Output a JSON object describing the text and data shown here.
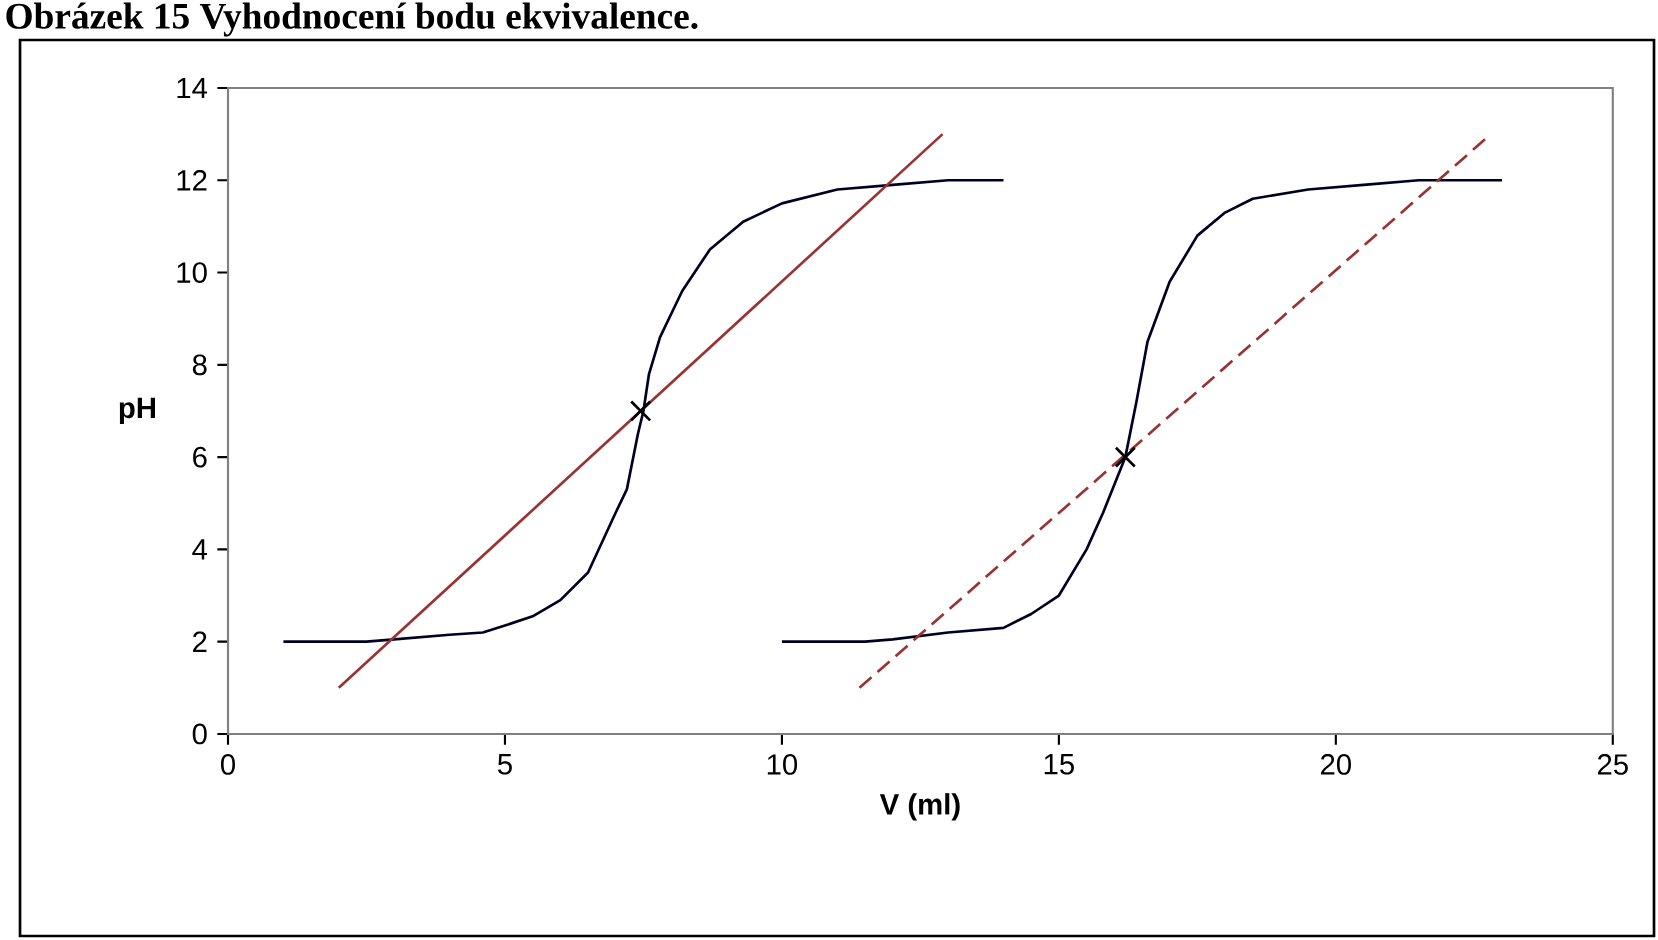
{
  "chart_data": {
    "type": "line",
    "title": "Obrázek 15 Vyhodnocení bodu ekvivalence.",
    "xlabel": "V (ml)",
    "ylabel": "pH",
    "xlim": [
      0,
      25
    ],
    "ylim": [
      0,
      14
    ],
    "xticks": [
      0,
      5,
      10,
      15,
      20,
      25
    ],
    "yticks": [
      0,
      2,
      4,
      6,
      8,
      10,
      12,
      14
    ],
    "grid": false,
    "series": [
      {
        "color": "#000022",
        "line_style": "solid",
        "x": [
          1,
          2.5,
          3,
          4,
          4.6,
          5,
          5.5,
          6,
          6.5,
          7,
          7.2,
          7.4,
          7.5,
          7.6,
          7.8,
          8.2,
          8.7,
          9.3,
          10,
          11,
          12,
          13,
          14
        ],
        "values": [
          2,
          2,
          2.05,
          2.15,
          2.2,
          2.35,
          2.55,
          2.9,
          3.5,
          4.8,
          5.3,
          6.5,
          7,
          7.8,
          8.6,
          9.6,
          10.5,
          11.1,
          11.5,
          11.8,
          11.9,
          12,
          12
        ]
      },
      {
        "color": "#993333",
        "line_style": "solid",
        "x": [
          2,
          12.9
        ],
        "values": [
          1,
          13
        ]
      },
      {
        "color": "#000022",
        "line_style": "solid",
        "x": [
          10,
          11.5,
          12,
          13,
          14,
          14.5,
          15,
          15.5,
          15.8,
          16.1,
          16.2,
          16.4,
          16.6,
          17,
          17.5,
          18,
          18.5,
          19.5,
          20.5,
          21.5,
          23
        ],
        "values": [
          2,
          2,
          2.05,
          2.2,
          2.3,
          2.6,
          3,
          4,
          4.8,
          5.7,
          6,
          7.2,
          8.5,
          9.8,
          10.8,
          11.3,
          11.6,
          11.8,
          11.9,
          12,
          12
        ]
      },
      {
        "color": "#993333",
        "line_style": "dashed",
        "x": [
          11.4,
          22.8
        ],
        "values": [
          1,
          13
        ]
      },
      {
        "type": "scatter",
        "color": "#000000",
        "marker": "cross",
        "x": [
          7.45,
          16.2
        ],
        "values": [
          7,
          6
        ]
      }
    ]
  }
}
